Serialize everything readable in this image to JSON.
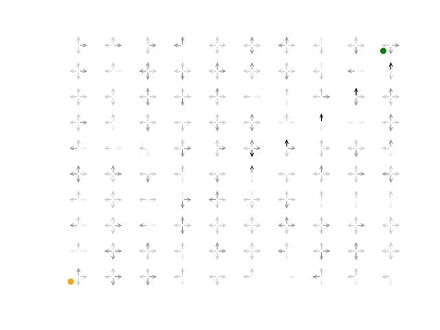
{
  "grid": {
    "rows": 10,
    "cols": 10,
    "start": {
      "row": 9,
      "col": 0
    },
    "goal": {
      "row": 0,
      "col": 9
    },
    "arrows": [
      [
        "udr",
        "lur",
        "udr",
        "lu",
        "lurd",
        "lurd",
        "lurd",
        "lud",
        "lurd",
        "ldr"
      ],
      [
        "lurd",
        "lur",
        "lurd",
        "lurd",
        "lurd",
        "lurd",
        "lurd",
        "lud",
        "lr",
        "ud"
      ],
      [
        "lurd",
        "lud",
        "lurd",
        "lurd",
        "lurd",
        "lr",
        "ud",
        "lur",
        "udr",
        "lurd"
      ],
      [
        "lurd",
        "lud",
        "lurd",
        "ldr",
        "lurd",
        "lurd",
        "lur",
        "ud",
        "lr",
        "lurd"
      ],
      [
        "lur",
        "lr",
        "ld",
        "lurd",
        "udr",
        "lurd",
        "udr",
        "udr",
        "lurd",
        "lud"
      ],
      [
        "lurd",
        "lurd",
        "lrd",
        "lud",
        "ldr",
        "ud",
        "lrd",
        "lurd",
        "lurd",
        "lurd"
      ],
      [
        "lur",
        "lurd",
        "lr",
        "udr",
        "lurd",
        "lurd",
        "lurd",
        "ud",
        "ud",
        "ud"
      ],
      [
        "lur",
        "lurd",
        "lr",
        "lurd",
        "lurd",
        "lurd",
        "lurd",
        "lurd",
        "lurd",
        "lurd"
      ],
      [
        "lur",
        "lurd",
        "lurd",
        "lud",
        "lurd",
        "lurd",
        "lud",
        "lurd",
        "lurd",
        "lurd"
      ],
      [
        "udr",
        "lurd",
        "lurd",
        "lud",
        "ldr",
        "lu",
        "r",
        "lud",
        "lud",
        "ld"
      ]
    ],
    "shade": [
      [
        [
          0,
          1,
          2,
          1
        ],
        [
          1,
          1,
          2,
          2
        ],
        [
          1,
          1,
          2,
          1
        ],
        [
          2,
          2,
          0,
          0
        ],
        [
          1,
          1,
          1,
          1
        ],
        [
          1,
          2,
          1,
          2
        ],
        [
          2,
          2,
          1,
          1
        ],
        [
          1,
          0,
          1,
          1
        ],
        [
          1,
          1,
          1,
          2
        ],
        [
          1,
          0,
          2,
          2
        ]
      ],
      [
        [
          1,
          1,
          2,
          1
        ],
        [
          1,
          1,
          0,
          1
        ],
        [
          2,
          2,
          1,
          2
        ],
        [
          1,
          1,
          1,
          2
        ],
        [
          1,
          2,
          2,
          1
        ],
        [
          1,
          2,
          1,
          1
        ],
        [
          1,
          1,
          1,
          2
        ],
        [
          1,
          0,
          0,
          1
        ],
        [
          2,
          0,
          0,
          4
        ],
        [
          0,
          4,
          2,
          1
        ]
      ],
      [
        [
          1,
          1,
          1,
          1
        ],
        [
          1,
          1,
          1,
          1
        ],
        [
          1,
          2,
          1,
          2
        ],
        [
          1,
          1,
          1,
          2
        ],
        [
          1,
          2,
          1,
          1
        ],
        [
          1,
          0,
          0,
          1
        ],
        [
          0,
          1,
          1,
          0
        ],
        [
          1,
          1,
          2,
          4
        ],
        [
          1,
          4,
          1,
          2
        ],
        [
          1,
          2,
          1,
          1
        ]
      ],
      [
        [
          1,
          1,
          2,
          1
        ],
        [
          1,
          1,
          1,
          0
        ],
        [
          1,
          1,
          1,
          2
        ],
        [
          1,
          0,
          1,
          1
        ],
        [
          1,
          1,
          1,
          2
        ],
        [
          1,
          2,
          1,
          2
        ],
        [
          0,
          1,
          0,
          4
        ],
        [
          0,
          4,
          1,
          0
        ],
        [
          0,
          0,
          0,
          0
        ],
        [
          1,
          2,
          1,
          2
        ]
      ],
      [
        [
          2,
          1,
          0,
          1
        ],
        [
          1,
          0,
          0,
          1
        ],
        [
          1,
          1,
          1,
          0
        ],
        [
          1,
          1,
          2,
          2
        ],
        [
          0,
          1,
          2,
          1
        ],
        [
          1,
          2,
          2,
          4
        ],
        [
          1,
          4,
          2,
          1
        ],
        [
          0,
          1,
          1,
          1
        ],
        [
          1,
          1,
          1,
          2
        ],
        [
          1,
          2,
          1,
          0
        ]
      ],
      [
        [
          2,
          2,
          1,
          2
        ],
        [
          1,
          2,
          2,
          1
        ],
        [
          1,
          0,
          1,
          2
        ],
        [
          1,
          1,
          1,
          0
        ],
        [
          1,
          0,
          1,
          2
        ],
        [
          0,
          3,
          1,
          0
        ],
        [
          1,
          0,
          1,
          1
        ],
        [
          1,
          2,
          1,
          1
        ],
        [
          1,
          1,
          2,
          1
        ],
        [
          2,
          1,
          1,
          2
        ]
      ],
      [
        [
          1,
          1,
          0,
          2
        ],
        [
          1,
          1,
          1,
          1
        ],
        [
          1,
          1,
          1,
          1
        ],
        [
          0,
          0,
          2,
          2
        ],
        [
          2,
          2,
          1,
          1
        ],
        [
          1,
          0,
          1,
          1
        ],
        [
          1,
          1,
          1,
          2
        ],
        [
          0,
          1,
          1,
          0
        ],
        [
          0,
          1,
          1,
          0
        ],
        [
          0,
          1,
          1,
          0
        ]
      ],
      [
        [
          2,
          1,
          0,
          1
        ],
        [
          1,
          1,
          2,
          1
        ],
        [
          2,
          1,
          0,
          2
        ],
        [
          1,
          2,
          1,
          2
        ],
        [
          1,
          1,
          1,
          1
        ],
        [
          1,
          1,
          1,
          1
        ],
        [
          2,
          2,
          2,
          1
        ],
        [
          1,
          1,
          2,
          1
        ],
        [
          1,
          1,
          2,
          1
        ],
        [
          1,
          1,
          1,
          1
        ]
      ],
      [
        [
          0,
          1,
          0,
          1
        ],
        [
          2,
          1,
          2,
          2
        ],
        [
          1,
          2,
          1,
          1
        ],
        [
          1,
          1,
          1,
          0
        ],
        [
          1,
          2,
          2,
          1
        ],
        [
          1,
          1,
          1,
          1
        ],
        [
          2,
          1,
          1,
          0
        ],
        [
          1,
          1,
          2,
          2
        ],
        [
          1,
          2,
          1,
          2
        ],
        [
          1,
          1,
          1,
          1
        ]
      ],
      [
        [
          0,
          2,
          1,
          1
        ],
        [
          1,
          1,
          2,
          2
        ],
        [
          1,
          1,
          2,
          2
        ],
        [
          1,
          1,
          1,
          0
        ],
        [
          1,
          1,
          1,
          1
        ],
        [
          1,
          1,
          0,
          0
        ],
        [
          0,
          0,
          0,
          1
        ],
        [
          2,
          1,
          1,
          0
        ],
        [
          1,
          1,
          1,
          0
        ],
        [
          1,
          1,
          1,
          0
        ]
      ]
    ],
    "colors": {
      "start": "#ffa500",
      "goal": "#008000",
      "shades": [
        "#e9e9e9",
        "#c6c6c6",
        "#8f8f8f",
        "#4a4a4a",
        "#000000"
      ]
    }
  }
}
